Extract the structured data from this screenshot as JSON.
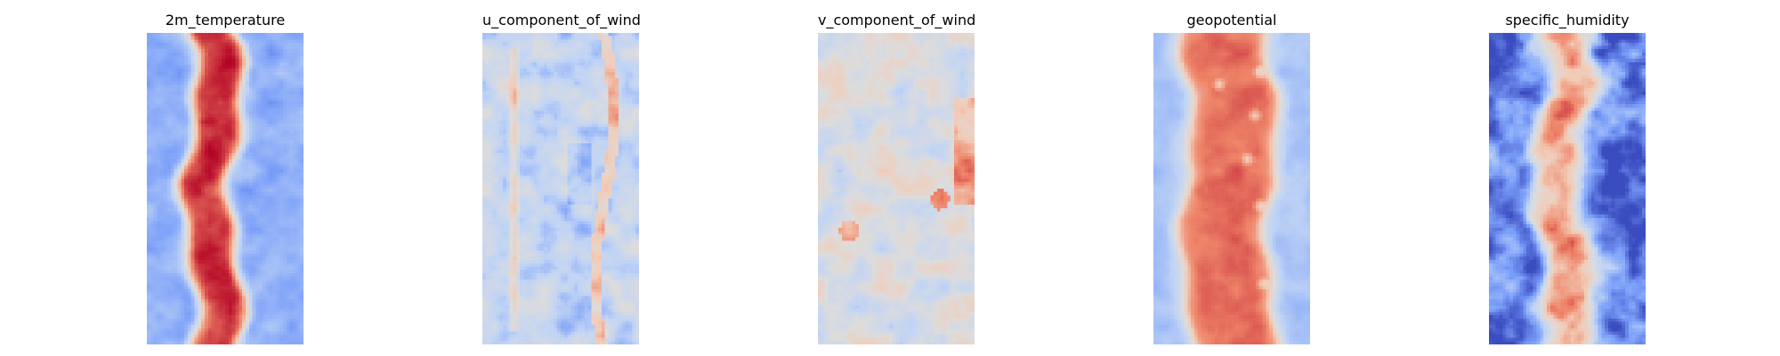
{
  "figure": {
    "colormap": "coolwarm",
    "colormap_stops": [
      "#3b4cc0",
      "#7b9ff9",
      "#c0d4f5",
      "#dddcdc",
      "#f2cbb7",
      "#ee8468",
      "#b40426"
    ]
  },
  "chart_data": [
    {
      "type": "heatmap",
      "title": "2m_temperature",
      "grid": false,
      "axes_visible": false,
      "profile": {
        "cx": 0.42,
        "w": 0.3,
        "edge": 0.08,
        "band": 0.95,
        "bg": 0.22,
        "noise": 0.1,
        "wobble": 0.05
      }
    },
    {
      "type": "heatmap",
      "title": "u_component_of_wind",
      "grid": false,
      "axes_visible": false,
      "profile": {
        "cx": 0.5,
        "w": 0.4,
        "edge": 0.25,
        "band": 0.33,
        "bg": 0.38,
        "noise": 0.22,
        "wobble": 0.04,
        "streaks": true
      }
    },
    {
      "type": "heatmap",
      "title": "v_component_of_wind",
      "grid": false,
      "axes_visible": false,
      "profile": {
        "cx": 0.5,
        "w": 0.8,
        "edge": 0.2,
        "band": 0.48,
        "bg": 0.48,
        "noise": 0.22,
        "wobble": 0.02,
        "rightwarm": true
      }
    },
    {
      "type": "heatmap",
      "title": "geopotential",
      "grid": false,
      "axes_visible": false,
      "profile": {
        "cx": 0.48,
        "w": 0.55,
        "edge": 0.1,
        "band": 0.86,
        "bg": 0.28,
        "noise": 0.06,
        "wobble": 0.04,
        "bubbles": true
      }
    },
    {
      "type": "heatmap",
      "title": "specific_humidity",
      "grid": false,
      "axes_visible": false,
      "profile": {
        "cx": 0.47,
        "w": 0.3,
        "edge": 0.12,
        "band": 0.78,
        "bg": 0.1,
        "noise": 0.25,
        "wobble": 0.06
      }
    }
  ]
}
